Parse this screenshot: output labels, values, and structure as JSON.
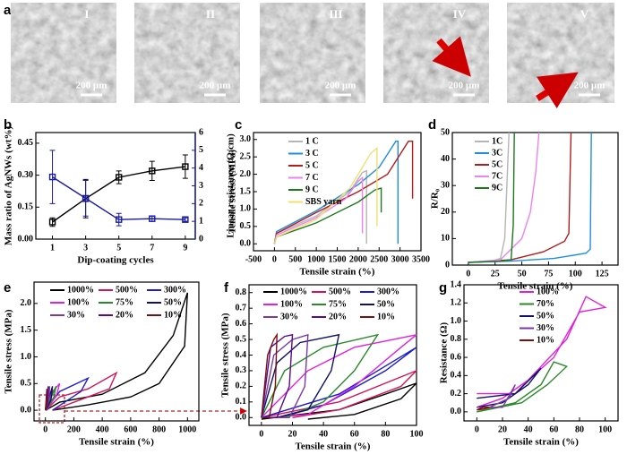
{
  "panel_a": {
    "panel": "a",
    "images": [
      {
        "label": "I",
        "scale_bar": "200 µm"
      },
      {
        "label": "II",
        "scale_bar": "200 µm"
      },
      {
        "label": "III",
        "scale_bar": "200 µm"
      },
      {
        "label": "IV",
        "scale_bar": "200 µm"
      },
      {
        "label": "V",
        "scale_bar": "200 µm"
      }
    ]
  },
  "chart_data": [
    {
      "type": "line",
      "panel": "b",
      "xlabel": "Dip-coating cycles",
      "ylabel": "Mass ratio of AgNWs (wt%)",
      "y2label": "Linear resistance (Ω/cm)",
      "x": [
        1,
        3,
        5,
        7,
        9
      ],
      "xlim": [
        0,
        9.6
      ],
      "xticks": [
        1,
        3,
        5,
        7,
        9
      ],
      "ylim": [
        0,
        0.5
      ],
      "yticks": [
        {
          "value": 0,
          "label": "0.00"
        },
        0.15,
        {
          "value": 0.3,
          "label": "0.30"
        },
        0.45
      ],
      "y2lim": [
        0,
        6
      ],
      "y2ticks": [
        0,
        1,
        2,
        3,
        4,
        5,
        6
      ],
      "series": [
        {
          "color": "#000000",
          "values": [
            0.08,
            0.19,
            0.29,
            0.32,
            0.34
          ],
          "errors": [
            0.02,
            0.09,
            0.03,
            0.045,
            0.055
          ]
        },
        {
          "color": "#1a1aa6",
          "axis": "y2",
          "values": [
            3.5,
            2.3,
            1.1,
            1.15,
            1.1
          ],
          "errors": [
            1.5,
            1.0,
            0.35,
            0.15,
            0.1
          ]
        }
      ]
    },
    {
      "type": "line",
      "panel": "c",
      "xlabel": "Tensile strain (%)",
      "ylabel": "Tensile stress (MPa)",
      "xlim": [
        -500,
        3500
      ],
      "xticks": [
        -500,
        0,
        500,
        1000,
        1500,
        2000,
        2500,
        3000,
        3500
      ],
      "ylim": [
        -0.2,
        3.2
      ],
      "yticks": [
        {
          "value": 0,
          "label": "0.0"
        },
        0.5,
        {
          "value": 1,
          "label": "1.0"
        },
        1.5,
        {
          "value": 2,
          "label": "2.0"
        },
        2.5,
        {
          "value": 3,
          "label": "3.0"
        }
      ],
      "series": [
        {
          "name": "1 C",
          "color": "#b5b5b5",
          "x": [
            0,
            50,
            1000,
            1800,
            2100,
            2200,
            2200
          ],
          "values": [
            0,
            0.3,
            0.8,
            1.5,
            2.05,
            2.1,
            0
          ]
        },
        {
          "name": "3 C",
          "color": "#1e8fe0",
          "x": [
            0,
            50,
            1000,
            2000,
            2500,
            2900,
            2950,
            2950
          ],
          "values": [
            0,
            0.35,
            0.95,
            1.7,
            2.2,
            2.95,
            2.95,
            0
          ]
        },
        {
          "name": "5 C",
          "color": "#b01e1e",
          "x": [
            0,
            50,
            1000,
            2000,
            2700,
            3200,
            3300,
            3300
          ],
          "values": [
            0,
            0.3,
            0.9,
            1.5,
            2.0,
            2.95,
            2.95,
            1.3
          ]
        },
        {
          "name": "7 C",
          "color": "#ee82ee",
          "x": [
            0,
            50,
            1000,
            1700,
            2000,
            2100,
            2100
          ],
          "values": [
            0,
            0.25,
            0.75,
            1.3,
            1.8,
            1.9,
            0.3
          ]
        },
        {
          "name": "9 C",
          "color": "#1a7a1a",
          "x": [
            0,
            50,
            1000,
            2000,
            2400,
            2550,
            2550
          ],
          "values": [
            0,
            0.2,
            0.6,
            1.2,
            1.55,
            1.6,
            0.9
          ]
        },
        {
          "name": "SBS yarn",
          "color": "#f0e070",
          "x": [
            0,
            50,
            1000,
            1800,
            2300,
            2450,
            2450
          ],
          "values": [
            0,
            0.2,
            0.7,
            1.6,
            2.6,
            2.75,
            0.5
          ]
        }
      ]
    },
    {
      "type": "line",
      "panel": "d",
      "xlabel": "Tensile strain (%)",
      "ylabel": "R/R₀",
      "xlim": [
        -15,
        140
      ],
      "xticks": [
        0,
        25,
        50,
        75,
        100,
        125
      ],
      "ylim": [
        0,
        50
      ],
      "yticks": [
        0,
        10,
        20,
        30,
        40,
        50
      ],
      "series": [
        {
          "name": "1C",
          "color": "#b5b5b5",
          "x": [
            0,
            20,
            30,
            34,
            36,
            38
          ],
          "values": [
            1,
            1.3,
            2.5,
            10,
            30,
            50
          ]
        },
        {
          "name": "3C",
          "color": "#1e8fe0",
          "x": [
            0,
            40,
            80,
            110,
            114,
            115
          ],
          "values": [
            1,
            1.5,
            2.5,
            4.5,
            6,
            50
          ]
        },
        {
          "name": "5C",
          "color": "#b01e1e",
          "x": [
            0,
            40,
            70,
            90,
            94,
            96
          ],
          "values": [
            1,
            2,
            5,
            9,
            12,
            50
          ]
        },
        {
          "name": "7C",
          "color": "#ee82ee",
          "x": [
            0,
            30,
            50,
            58,
            63,
            66
          ],
          "values": [
            1,
            2,
            10,
            20,
            35,
            50
          ]
        },
        {
          "name": "9C",
          "color": "#1a7a1a",
          "x": [
            0,
            30,
            40,
            42,
            43
          ],
          "values": [
            1,
            1.5,
            2,
            15,
            50
          ]
        }
      ]
    },
    {
      "type": "line",
      "panel": "e",
      "xlabel": "Tensile strain (%)",
      "ylabel": "Tensile stress (MPa)",
      "xlim": [
        -80,
        1080
      ],
      "xticks": [
        0,
        200,
        400,
        600,
        800,
        1000
      ],
      "ylim": [
        -0.2,
        2.4
      ],
      "yticks": [
        {
          "value": 0,
          "label": "0.0"
        },
        0.5,
        {
          "value": 1,
          "label": "1.0"
        },
        1.5,
        {
          "value": 2,
          "label": "2.0"
        }
      ],
      "series": [
        {
          "name": "1000%",
          "color": "#000000",
          "x": [
            0,
            100,
            400,
            700,
            900,
            1000,
            980,
            800,
            600,
            300,
            50
          ],
          "values": [
            0,
            0.15,
            0.3,
            0.7,
            1.4,
            2.2,
            1.2,
            0.5,
            0.25,
            0.1,
            0
          ]
        },
        {
          "name": "500%",
          "color": "#d4145a",
          "x": [
            0,
            100,
            300,
            500,
            450,
            250,
            50
          ],
          "values": [
            0,
            0.25,
            0.4,
            0.7,
            0.4,
            0.2,
            0
          ]
        },
        {
          "name": "300%",
          "color": "#1c1cd0",
          "x": [
            0,
            100,
            300,
            250,
            50
          ],
          "values": [
            0,
            0.35,
            0.6,
            0.35,
            0
          ]
        },
        {
          "name": "100%",
          "color": "#e020e0",
          "x": [
            0,
            50,
            100,
            80,
            10
          ],
          "values": [
            0,
            0.35,
            0.5,
            0.3,
            0
          ]
        },
        {
          "name": "75%",
          "color": "#2a8a2a",
          "x": [
            0,
            75,
            60,
            5
          ],
          "values": [
            0,
            0.45,
            0.25,
            0
          ]
        },
        {
          "name": "50%",
          "color": "#10106a",
          "x": [
            0,
            50,
            40,
            5
          ],
          "values": [
            0,
            0.45,
            0.2,
            0
          ]
        },
        {
          "name": "30%",
          "color": "#7a3aa0",
          "x": [
            0,
            30,
            25,
            3
          ],
          "values": [
            0,
            0.45,
            0.2,
            0
          ]
        },
        {
          "name": "20%",
          "color": "#5a0a8a",
          "x": [
            0,
            20,
            15,
            2
          ],
          "values": [
            0,
            0.45,
            0.15,
            0
          ]
        },
        {
          "name": "10%",
          "color": "#7a1010",
          "x": [
            0,
            10,
            8,
            1
          ],
          "values": [
            0,
            0.4,
            0.1,
            0
          ]
        }
      ]
    },
    {
      "type": "line",
      "panel": "f",
      "xlabel": "Tensile strain (%)",
      "ylabel": "Tensile stress (MPa)",
      "xlim": [
        -8,
        100
      ],
      "xticks": [
        0,
        20,
        40,
        60,
        80,
        100
      ],
      "ylim": [
        -0.05,
        0.85
      ],
      "yticks": [
        {
          "value": 0,
          "label": "0.0"
        },
        0.1,
        0.2,
        0.3,
        0.4,
        0.5,
        0.6,
        0.7,
        0.8
      ],
      "series": [
        {
          "name": "1000%",
          "color": "#000000",
          "x": [
            0,
            50,
            80,
            100,
            90,
            60,
            30
          ],
          "values": [
            -0.01,
            0.05,
            0.15,
            0.22,
            0.12,
            0.02,
            -0.01
          ]
        },
        {
          "name": "500%",
          "color": "#d4145a",
          "x": [
            0,
            50,
            100,
            90,
            50,
            20
          ],
          "values": [
            0,
            0.1,
            0.3,
            0.2,
            0.05,
            0
          ]
        },
        {
          "name": "300%",
          "color": "#1c1cd0",
          "x": [
            0,
            50,
            100,
            80,
            40,
            10
          ],
          "values": [
            0,
            0.15,
            0.45,
            0.3,
            0.08,
            0
          ]
        },
        {
          "name": "100%",
          "color": "#e020e0",
          "x": [
            0,
            30,
            60,
            100,
            90,
            60,
            30,
            5
          ],
          "values": [
            0,
            0.3,
            0.45,
            0.53,
            0.45,
            0.2,
            0.02,
            0
          ]
        },
        {
          "name": "75%",
          "color": "#2a8a2a",
          "x": [
            0,
            15,
            40,
            75,
            60,
            40,
            15
          ],
          "values": [
            0,
            0.3,
            0.45,
            0.53,
            0.3,
            0.1,
            0
          ]
        },
        {
          "name": "50%",
          "color": "#10106a",
          "x": [
            0,
            10,
            25,
            50,
            45,
            30,
            10
          ],
          "values": [
            0,
            0.35,
            0.48,
            0.53,
            0.3,
            0.05,
            0
          ]
        },
        {
          "name": "30%",
          "color": "#7a3aa0",
          "x": [
            0,
            8,
            20,
            30,
            28,
            18,
            5
          ],
          "values": [
            0,
            0.4,
            0.5,
            0.53,
            0.2,
            0,
            0
          ]
        },
        {
          "name": "20%",
          "color": "#5a0a8a",
          "x": [
            0,
            6,
            15,
            20,
            18,
            10,
            3
          ],
          "values": [
            0,
            0.45,
            0.52,
            0.53,
            0.2,
            0,
            0
          ]
        },
        {
          "name": "10%",
          "color": "#7a1010",
          "x": [
            0,
            4,
            8,
            10,
            9,
            5,
            1
          ],
          "values": [
            0,
            0.4,
            0.5,
            0.53,
            0.2,
            0,
            0
          ]
        }
      ]
    },
    {
      "type": "line",
      "panel": "g",
      "xlabel": "Tensile strain (%)",
      "ylabel": "Resistance (Ω)",
      "xlim": [
        -10,
        110
      ],
      "xticks": [
        0,
        20,
        40,
        60,
        80,
        100
      ],
      "ylim": [
        -0.1,
        1.4
      ],
      "yticks": [
        {
          "value": 0,
          "label": "0.0"
        },
        0.2,
        0.4,
        0.6,
        0.8,
        {
          "value": 1,
          "label": "1.0"
        },
        1.2,
        1.4
      ],
      "series": [
        {
          "name": "100%",
          "color": "#e020e0",
          "x": [
            0,
            30,
            50,
            70,
            85,
            100,
            80,
            60,
            40,
            20,
            0
          ],
          "values": [
            0.2,
            0.2,
            0.5,
            0.8,
            1.27,
            1.15,
            1.1,
            0.6,
            0.35,
            0.15,
            0.05
          ]
        },
        {
          "name": "70%",
          "color": "#2a8a2a",
          "x": [
            0,
            30,
            50,
            60,
            70,
            55,
            35,
            0
          ],
          "values": [
            0,
            0.1,
            0.3,
            0.55,
            0.5,
            0.3,
            0.1,
            0
          ]
        },
        {
          "name": "50%",
          "color": "#10106a",
          "x": [
            0,
            30,
            50,
            40,
            20,
            0
          ],
          "values": [
            0.15,
            0.2,
            0.48,
            0.3,
            0.1,
            0.05
          ]
        },
        {
          "name": "30%",
          "color": "#7a3aa0",
          "x": [
            0,
            20,
            30,
            25,
            10,
            0
          ],
          "values": [
            0.05,
            0.05,
            0.3,
            0.15,
            0.05,
            0.05
          ]
        },
        {
          "name": "10%",
          "color": "#7a1010",
          "x": [
            0,
            5,
            10,
            5,
            0
          ],
          "values": [
            0.02,
            0.05,
            0.05,
            0.03,
            0.02
          ]
        }
      ]
    }
  ]
}
